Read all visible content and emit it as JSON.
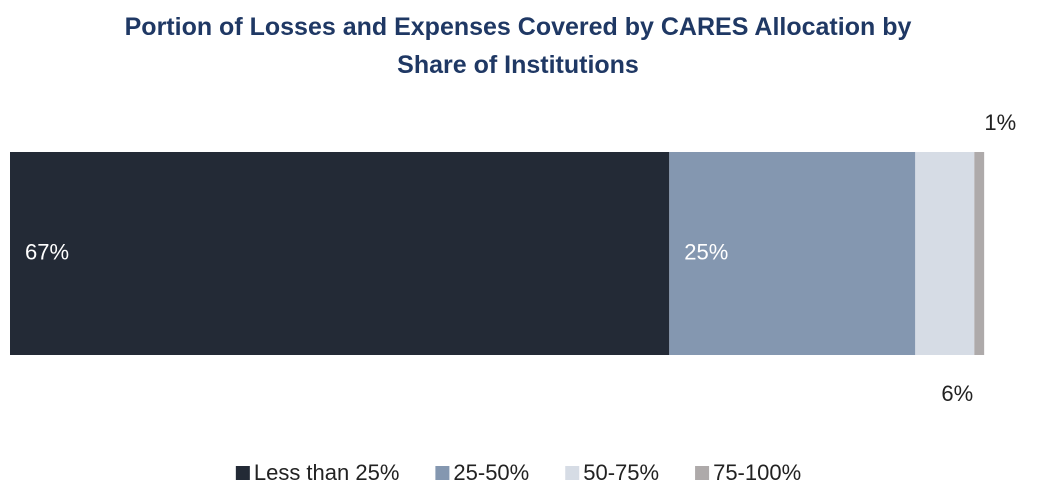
{
  "chart_data": {
    "type": "stacked_bar_horizontal",
    "title": "Portion of Losses and Expenses Covered by CARES Allocation by Share of Institutions",
    "categories": [
      null
    ],
    "series": [
      {
        "name": "Less than 25%",
        "color": "#232a36",
        "values": [
          67
        ],
        "value_labels": [
          "67%"
        ]
      },
      {
        "name": "25-50%",
        "color": "#8497b0",
        "values": [
          25
        ],
        "value_labels": [
          "25%"
        ]
      },
      {
        "name": "50-75%",
        "color": "#d6dce5",
        "values": [
          6
        ],
        "value_labels": [
          "6%"
        ]
      },
      {
        "name": "75-100%",
        "color": "#aeaaaa",
        "values": [
          1
        ],
        "value_labels": [
          "1%"
        ]
      }
    ],
    "xlim": [
      0,
      100
    ],
    "legend": "bottom"
  }
}
